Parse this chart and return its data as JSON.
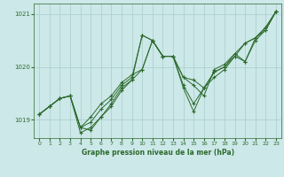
{
  "xlabel": "Graphe pression niveau de la mer (hPa)",
  "xlim": [
    -0.5,
    23.5
  ],
  "ylim": [
    1018.65,
    1021.2
  ],
  "yticks": [
    1019,
    1020,
    1021
  ],
  "xticks": [
    0,
    1,
    2,
    3,
    4,
    5,
    6,
    7,
    8,
    9,
    10,
    11,
    12,
    13,
    14,
    15,
    16,
    17,
    18,
    19,
    20,
    21,
    22,
    23
  ],
  "bg_color": "#cce8e8",
  "grid_color": "#aacccc",
  "line_color": "#2d6a2d",
  "series": [
    [
      1019.1,
      1019.25,
      1019.4,
      1019.45,
      1018.85,
      1018.8,
      1019.05,
      1019.25,
      1019.55,
      1019.75,
      1019.95,
      1020.5,
      1020.2,
      1020.2,
      1019.8,
      1019.75,
      1019.6,
      1019.8,
      1019.95,
      1020.2,
      1020.1,
      1020.5,
      1020.7,
      1021.05
    ],
    [
      1019.1,
      1019.25,
      1019.4,
      1019.45,
      1018.85,
      1019.05,
      1019.3,
      1019.45,
      1019.7,
      1019.85,
      1019.95,
      1020.5,
      1020.2,
      1020.2,
      1019.8,
      1019.65,
      1019.45,
      1019.95,
      1020.05,
      1020.25,
      1020.1,
      1020.55,
      1020.7,
      1021.05
    ],
    [
      1019.1,
      1019.25,
      1019.4,
      1019.45,
      1018.85,
      1018.95,
      1019.2,
      1019.38,
      1019.65,
      1019.8,
      1020.6,
      1020.5,
      1020.2,
      1020.2,
      1019.65,
      1019.3,
      1019.6,
      1019.9,
      1020.0,
      1020.2,
      1020.45,
      1020.55,
      1020.75,
      1021.05
    ],
    [
      1019.1,
      1019.25,
      1019.4,
      1019.45,
      1018.75,
      1018.85,
      1019.05,
      1019.3,
      1019.6,
      1019.75,
      1020.6,
      1020.5,
      1020.2,
      1020.2,
      1019.6,
      1019.15,
      1019.6,
      1019.9,
      1020.0,
      1020.25,
      1020.45,
      1020.55,
      1020.75,
      1021.05
    ]
  ]
}
